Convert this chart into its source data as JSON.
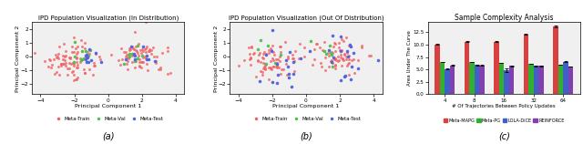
{
  "title_a": "IPD Population Visualization (In Distribution)",
  "title_b": "IPD Population Visualization (Out Of Distribution)",
  "title_c": "Sample Complexity Analysis",
  "xlabel_ab": "Principal Component 1",
  "ylabel_ab": "Principal Component 2",
  "xlabel_c": "# Of Trajectories Between Policy Updates",
  "ylabel_c": "Area Under The Curve",
  "xlim_ab": [
    -4.5,
    4.5
  ],
  "ylim_ab": [
    -2.8,
    2.5
  ],
  "xticks_ab": [
    -4,
    -2,
    0,
    2,
    4
  ],
  "yticks_ab": [
    -2,
    -1,
    0,
    1,
    2
  ],
  "ylim_c": [
    0,
    14.5
  ],
  "yticks_c": [
    0.0,
    2.5,
    5.0,
    7.5,
    10.0,
    12.5
  ],
  "scatter_colors": {
    "train": "#f06060",
    "val": "#50c050",
    "test": "#5060e0"
  },
  "bar_colors": {
    "Meta-MAPG": "#d94040",
    "Meta-PG": "#30b030",
    "LOLA-DiCE": "#4060c8",
    "REINFORCE": "#8040b0"
  },
  "bar_data": {
    "x": [
      4,
      8,
      16,
      32,
      64
    ],
    "Meta-MAPG": [
      10.05,
      10.6,
      10.6,
      12.1,
      13.7
    ],
    "Meta-PG": [
      6.5,
      6.5,
      6.3,
      6.1,
      6.0
    ],
    "LOLA-DiCE": [
      5.1,
      5.9,
      4.9,
      5.7,
      6.6
    ],
    "REINFORCE": [
      5.85,
      5.85,
      5.7,
      5.7,
      5.6
    ]
  },
  "bar_errors": {
    "Meta-MAPG": [
      0.06,
      0.07,
      0.07,
      0.12,
      0.14
    ],
    "Meta-PG": [
      0.04,
      0.04,
      0.06,
      0.04,
      0.05
    ],
    "LOLA-DiCE": [
      0.12,
      0.07,
      0.32,
      0.07,
      0.09
    ],
    "REINFORCE": [
      0.03,
      0.03,
      0.03,
      0.03,
      0.04
    ]
  },
  "legend_ab": [
    "Meta-Train",
    "Meta-Val",
    "Meta-Test"
  ],
  "legend_c": [
    "Meta-MAPG",
    "Meta-PG",
    "LOLA-DiCE",
    "REINFORCE"
  ],
  "label_a": "(a)",
  "label_b": "(b)",
  "label_c": "(c)",
  "ax_bg": "#f0f0f0"
}
